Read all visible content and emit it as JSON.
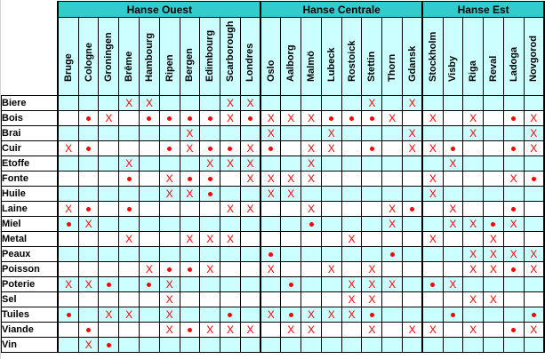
{
  "groups": [
    {
      "name": "Hanse Ouest",
      "cities": [
        "Bruge",
        "Cologne",
        "Groningen",
        "Brême",
        "Hambourg",
        "Ripen",
        "Bergen",
        "Edimbourg",
        "Scarborough",
        "Londres"
      ]
    },
    {
      "name": "Hanse Centrale",
      "cities": [
        "Oslo",
        "Aalborg",
        "Malmö",
        "Lubeck",
        "Rostoick",
        "Stettin",
        "Thorn",
        "Gdansk"
      ]
    },
    {
      "name": "Hanse Est",
      "cities": [
        "Stockholm",
        "Visby",
        "Riga",
        "Reval",
        "Ladoga",
        "Novgorod"
      ]
    }
  ],
  "products": [
    {
      "name": "Biere",
      "marks": [
        "",
        "",
        "",
        "X",
        "X",
        "",
        "",
        "",
        "X",
        "X",
        "",
        "",
        "",
        "",
        "",
        "X",
        "",
        "X",
        "",
        "",
        "",
        "",
        "",
        ""
      ]
    },
    {
      "name": "Bois",
      "marks": [
        "",
        "•",
        "X",
        "",
        "•",
        "•",
        "•",
        "•",
        "X",
        "•",
        "X",
        "X",
        "X",
        "•",
        "•",
        "•",
        "X",
        "",
        "X",
        "",
        "X",
        "",
        "•",
        "X"
      ]
    },
    {
      "name": "Brai",
      "marks": [
        "",
        "",
        "",
        "",
        "",
        "",
        "X",
        "",
        "",
        "",
        "X",
        "",
        "",
        "X",
        "",
        "",
        "",
        "X",
        "",
        "",
        "X",
        "",
        "",
        "X"
      ]
    },
    {
      "name": "Cuir",
      "marks": [
        "X",
        "•",
        "",
        "",
        "",
        "•",
        "X",
        "•",
        "•",
        "X",
        "•",
        "",
        "X",
        "X",
        "",
        "•",
        "",
        "X",
        "X",
        "•",
        "",
        "",
        "•",
        "X"
      ]
    },
    {
      "name": "Etoffe",
      "marks": [
        "",
        "",
        "",
        "X",
        "",
        "",
        "",
        "X",
        "X",
        "X",
        "",
        "",
        "X",
        "",
        "",
        "",
        "",
        "",
        "",
        "X",
        "",
        "",
        "",
        ""
      ]
    },
    {
      "name": "Fonte",
      "marks": [
        "",
        "",
        "",
        "•",
        "",
        "X",
        "•",
        "•",
        "",
        "X",
        "X",
        "X",
        "X",
        "",
        "",
        "",
        "",
        "",
        "X",
        "",
        "",
        "",
        "X",
        "•"
      ]
    },
    {
      "name": "Huile",
      "marks": [
        "",
        "",
        "",
        "",
        "",
        "X",
        "X",
        "•",
        "",
        "",
        "X",
        "X",
        "",
        "",
        "",
        "",
        "",
        "",
        "X",
        "",
        "",
        "",
        "",
        ""
      ]
    },
    {
      "name": "Laine",
      "marks": [
        "X",
        "•",
        "",
        "•",
        "",
        "",
        "",
        "",
        "X",
        "X",
        "",
        "",
        "X",
        "",
        "",
        "",
        "X",
        "•",
        "",
        "X",
        "",
        "",
        "•",
        ""
      ]
    },
    {
      "name": "Miel",
      "marks": [
        "•",
        "X",
        "",
        "",
        "",
        "",
        "",
        "",
        "",
        "",
        "",
        "",
        "•",
        "",
        "",
        "",
        "X",
        "",
        "",
        "X",
        "X",
        "•",
        "X",
        ""
      ]
    },
    {
      "name": "Metal",
      "marks": [
        "",
        "",
        "",
        "X",
        "",
        "",
        "X",
        "X",
        "X",
        "",
        "",
        "",
        "",
        "",
        "X",
        "",
        "",
        "",
        "X",
        "",
        "",
        "X",
        "",
        ""
      ]
    },
    {
      "name": "Peaux",
      "marks": [
        "",
        "",
        "",
        "",
        "",
        "",
        "",
        "",
        "",
        "",
        "•",
        "",
        "",
        "",
        "",
        "",
        "•",
        "",
        "",
        "",
        "X",
        "X",
        "X",
        "X"
      ]
    },
    {
      "name": "Poisson",
      "marks": [
        "",
        "",
        "",
        "",
        "X",
        "•",
        "•",
        "X",
        "",
        "",
        "X",
        "",
        "",
        "X",
        "",
        "X",
        "",
        "",
        "",
        "",
        "X",
        "X",
        "•",
        "X"
      ]
    },
    {
      "name": "Poterie",
      "marks": [
        "X",
        "X",
        "•",
        "",
        "•",
        "X",
        "",
        "",
        "",
        "",
        "",
        "•",
        "",
        "",
        "X",
        "X",
        "X",
        "",
        "•",
        "X",
        "",
        "",
        "",
        ""
      ]
    },
    {
      "name": "Sel",
      "marks": [
        "",
        "",
        "",
        "",
        "",
        "X",
        "",
        "",
        "",
        "",
        "",
        "",
        "",
        "",
        "X",
        "X",
        "",
        "",
        "",
        "",
        "X",
        "X",
        "",
        ""
      ]
    },
    {
      "name": "Tuiles",
      "marks": [
        "•",
        "",
        "X",
        "X",
        "",
        "X",
        "",
        "",
        "•",
        "",
        "X",
        "•",
        "X",
        "X",
        "X",
        "•",
        "",
        "",
        "",
        "•",
        "",
        "",
        "",
        "•"
      ]
    },
    {
      "name": "Viande",
      "marks": [
        "",
        "•",
        "",
        "",
        "",
        "X",
        "•",
        "X",
        "X",
        "X",
        "",
        "X",
        "X",
        "",
        "",
        "X",
        "",
        "X",
        "X",
        "",
        "X",
        "",
        "•",
        "X"
      ]
    },
    {
      "name": "Vin",
      "marks": [
        "",
        "X",
        "•",
        "",
        "",
        "",
        "",
        "",
        "",
        "",
        "",
        "",
        "",
        "",
        "",
        "",
        "",
        "",
        "",
        "",
        "",
        "",
        "",
        ""
      ]
    }
  ]
}
